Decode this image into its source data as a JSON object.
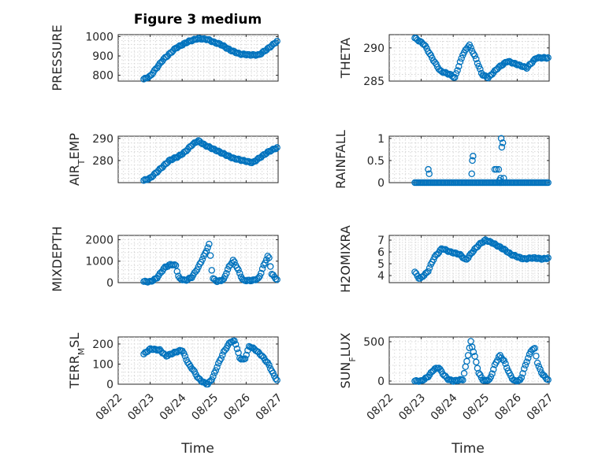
{
  "chart_data": [
    {
      "key": "pressure",
      "type": "scatter",
      "title": "Figure 3 medium",
      "ylabel": "PRESSURE",
      "ylim": [
        770,
        1010
      ],
      "yticks": [
        800,
        900,
        1000
      ],
      "knots": [
        [
          0.8,
          780
        ],
        [
          1.0,
          795
        ],
        [
          1.4,
          880
        ],
        [
          1.8,
          940
        ],
        [
          2.2,
          975
        ],
        [
          2.5,
          990
        ],
        [
          2.8,
          985
        ],
        [
          3.0,
          970
        ],
        [
          3.2,
          960
        ],
        [
          3.5,
          930
        ],
        [
          3.8,
          910
        ],
        [
          4.1,
          905
        ],
        [
          4.4,
          905
        ],
        [
          4.7,
          940
        ],
        [
          5.0,
          980
        ]
      ]
    },
    {
      "key": "theta",
      "type": "scatter",
      "ylabel": "THETA",
      "ylim": [
        285,
        292
      ],
      "yticks": [
        285,
        290
      ],
      "knots": [
        [
          0.8,
          291.5
        ],
        [
          1.1,
          290.5
        ],
        [
          1.4,
          288
        ],
        [
          1.6,
          286.5
        ],
        [
          1.9,
          286
        ],
        [
          2.05,
          285.5
        ],
        [
          2.3,
          289
        ],
        [
          2.5,
          290.5
        ],
        [
          2.7,
          288.5
        ],
        [
          2.9,
          286
        ],
        [
          3.1,
          285.5
        ],
        [
          3.4,
          287
        ],
        [
          3.7,
          288
        ],
        [
          4.0,
          287.5
        ],
        [
          4.3,
          287
        ],
        [
          4.6,
          288.5
        ],
        [
          5.0,
          288.5
        ]
      ]
    },
    {
      "key": "airtemp",
      "type": "scatter",
      "ylabel": "AIR_TEMP",
      "ylim": [
        270,
        291
      ],
      "yticks": [
        280,
        290
      ],
      "knots": [
        [
          0.8,
          271
        ],
        [
          1.0,
          272
        ],
        [
          1.3,
          276
        ],
        [
          1.6,
          280
        ],
        [
          1.9,
          282
        ],
        [
          2.1,
          284
        ],
        [
          2.3,
          287
        ],
        [
          2.5,
          289
        ],
        [
          2.7,
          287
        ],
        [
          3.0,
          285
        ],
        [
          3.3,
          283
        ],
        [
          3.6,
          281
        ],
        [
          3.9,
          280
        ],
        [
          4.2,
          279
        ],
        [
          4.4,
          281
        ],
        [
          4.7,
          284
        ],
        [
          5.0,
          286
        ]
      ]
    },
    {
      "key": "rainfall",
      "type": "scatter",
      "ylabel": "RAINFALL",
      "ylim": [
        0,
        1.05
      ],
      "yticks": [
        0,
        0.5,
        1
      ],
      "base": 0,
      "spikes": [
        [
          1.22,
          0.3
        ],
        [
          1.25,
          0.2
        ],
        [
          2.6,
          0.5
        ],
        [
          2.62,
          0.6
        ],
        [
          2.58,
          0.2
        ],
        [
          3.3,
          0.3
        ],
        [
          3.35,
          0.3
        ],
        [
          3.42,
          0.3
        ],
        [
          3.48,
          0.1
        ],
        [
          3.5,
          1.0
        ],
        [
          3.55,
          0.9
        ],
        [
          3.52,
          0.8
        ],
        [
          3.58,
          0.1
        ],
        [
          3.45,
          0.05
        ]
      ]
    },
    {
      "key": "mixdepth",
      "type": "scatter",
      "ylabel": "MIXDEPTH",
      "ylim": [
        0,
        2200
      ],
      "yticks": [
        0,
        1000,
        2000
      ],
      "knots": [
        [
          0.8,
          50
        ],
        [
          1.0,
          40
        ],
        [
          1.2,
          200
        ],
        [
          1.45,
          700
        ],
        [
          1.65,
          850
        ],
        [
          1.8,
          800
        ],
        [
          1.9,
          200
        ],
        [
          2.1,
          100
        ],
        [
          2.3,
          250
        ],
        [
          2.5,
          700
        ],
        [
          2.7,
          1300
        ],
        [
          2.85,
          1800
        ],
        [
          2.95,
          200
        ],
        [
          3.1,
          50
        ],
        [
          3.3,
          150
        ],
        [
          3.45,
          700
        ],
        [
          3.6,
          1050
        ],
        [
          3.75,
          600
        ],
        [
          3.9,
          100
        ],
        [
          4.2,
          100
        ],
        [
          4.4,
          200
        ],
        [
          4.55,
          800
        ],
        [
          4.7,
          1300
        ],
        [
          4.8,
          400
        ],
        [
          5.0,
          80
        ]
      ]
    },
    {
      "key": "h2omixra",
      "type": "scatter",
      "ylabel": "H2OMIXRA",
      "ylim": [
        3.4,
        7.4
      ],
      "yticks": [
        4,
        5,
        6,
        7
      ],
      "knots": [
        [
          0.8,
          4.3
        ],
        [
          0.95,
          3.7
        ],
        [
          1.2,
          4.3
        ],
        [
          1.4,
          5.5
        ],
        [
          1.65,
          6.3
        ],
        [
          1.9,
          6.0
        ],
        [
          2.2,
          5.8
        ],
        [
          2.4,
          5.3
        ],
        [
          2.6,
          6.0
        ],
        [
          2.8,
          6.6
        ],
        [
          3.0,
          7.0
        ],
        [
          3.2,
          6.8
        ],
        [
          3.4,
          6.5
        ],
        [
          3.6,
          6.2
        ],
        [
          3.8,
          5.8
        ],
        [
          4.0,
          5.6
        ],
        [
          4.2,
          5.4
        ],
        [
          4.5,
          5.5
        ],
        [
          4.8,
          5.4
        ],
        [
          5.0,
          5.5
        ]
      ]
    },
    {
      "key": "terrmsl",
      "type": "scatter",
      "ylabel": "TERR_MSL",
      "ylim": [
        0,
        235
      ],
      "yticks": [
        0,
        100,
        200
      ],
      "knots": [
        [
          0.8,
          150
        ],
        [
          1.0,
          175
        ],
        [
          1.3,
          170
        ],
        [
          1.5,
          140
        ],
        [
          1.8,
          160
        ],
        [
          2.0,
          170
        ],
        [
          2.2,
          100
        ],
        [
          2.35,
          70
        ],
        [
          2.5,
          30
        ],
        [
          2.65,
          10
        ],
        [
          2.8,
          0
        ],
        [
          2.95,
          30
        ],
        [
          3.1,
          90
        ],
        [
          3.3,
          160
        ],
        [
          3.5,
          210
        ],
        [
          3.65,
          215
        ],
        [
          3.8,
          130
        ],
        [
          3.95,
          120
        ],
        [
          4.1,
          190
        ],
        [
          4.3,
          170
        ],
        [
          4.5,
          140
        ],
        [
          4.7,
          100
        ],
        [
          4.85,
          50
        ],
        [
          5.0,
          10
        ]
      ]
    },
    {
      "key": "sunflux",
      "type": "scatter",
      "ylabel": "SUN_FLUX",
      "ylim": [
        -40,
        560
      ],
      "yticks": [
        0,
        500
      ],
      "knots": [
        [
          0.8,
          0
        ],
        [
          1.0,
          0
        ],
        [
          1.2,
          50
        ],
        [
          1.4,
          150
        ],
        [
          1.55,
          170
        ],
        [
          1.7,
          80
        ],
        [
          1.85,
          20
        ],
        [
          2.0,
          0
        ],
        [
          2.3,
          20
        ],
        [
          2.45,
          300
        ],
        [
          2.55,
          500
        ],
        [
          2.65,
          350
        ],
        [
          2.8,
          100
        ],
        [
          2.95,
          0
        ],
        [
          3.15,
          20
        ],
        [
          3.3,
          200
        ],
        [
          3.45,
          330
        ],
        [
          3.6,
          250
        ],
        [
          3.75,
          100
        ],
        [
          3.9,
          0
        ],
        [
          4.1,
          10
        ],
        [
          4.3,
          250
        ],
        [
          4.45,
          400
        ],
        [
          4.55,
          410
        ],
        [
          4.65,
          200
        ],
        [
          4.8,
          80
        ],
        [
          5.0,
          0
        ]
      ]
    }
  ],
  "xaxis": {
    "label": "Time",
    "ticks": [
      "08/22",
      "08/23",
      "08/24",
      "08/25",
      "08/26",
      "08/27"
    ]
  },
  "colors": {
    "marker": "#0072bd",
    "axis": "#262626",
    "grid": "#cfcfcf"
  }
}
